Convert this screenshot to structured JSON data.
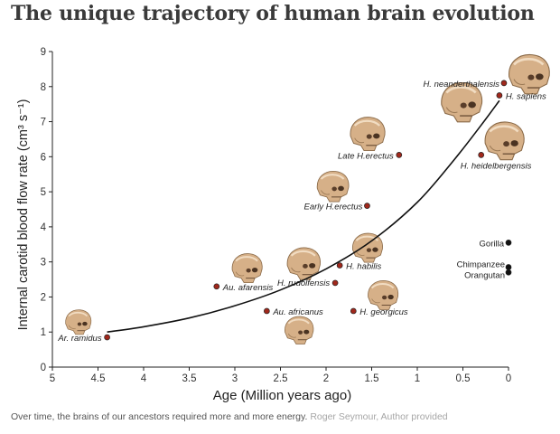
{
  "title": "The unique trajectory of human brain evolution",
  "caption": {
    "text": "Over time, the brains of our ancestors required more and more energy.",
    "credit": "Roger Seymour, Author provided"
  },
  "chart_data": {
    "type": "scatter",
    "xlabel": "Age  (Million years ago)",
    "ylabel": "Internal carotid blood flow rate  (cm³ s⁻¹)",
    "xlim": [
      5,
      0
    ],
    "ylim": [
      0,
      9
    ],
    "x_ticks": [
      "5",
      "4.5",
      "4",
      "3.5",
      "3",
      "2.5",
      "2",
      "1.5",
      "1",
      "0.5",
      "0"
    ],
    "y_ticks": [
      "0",
      "1",
      "2",
      "3",
      "4",
      "5",
      "6",
      "7",
      "8",
      "9"
    ],
    "grid": false,
    "legend": "none",
    "colors": {
      "hominin": "#a0281c",
      "ape": "#111111",
      "curve": "#111111",
      "skull": "#d9b48a"
    },
    "points": [
      {
        "label": "Ar. ramidus",
        "x": 4.4,
        "y": 0.85,
        "group": "hominin"
      },
      {
        "label": "Au. afarensis",
        "x": 3.2,
        "y": 2.3,
        "group": "hominin"
      },
      {
        "label": "Au. africanus",
        "x": 2.65,
        "y": 1.6,
        "group": "hominin"
      },
      {
        "label": "H. rudolfensis",
        "x": 1.9,
        "y": 2.4,
        "group": "hominin"
      },
      {
        "label": "H. habilis",
        "x": 1.85,
        "y": 2.9,
        "group": "hominin"
      },
      {
        "label": "H. georgicus",
        "x": 1.7,
        "y": 1.6,
        "group": "hominin"
      },
      {
        "label": "Early H.erectus",
        "x": 1.55,
        "y": 4.6,
        "group": "hominin"
      },
      {
        "label": "Late H.erectus",
        "x": 1.2,
        "y": 6.05,
        "group": "hominin"
      },
      {
        "label": "H. heidelbergensis",
        "x": 0.3,
        "y": 6.05,
        "group": "hominin"
      },
      {
        "label": "H. neanderthalensis",
        "x": 0.05,
        "y": 8.1,
        "group": "hominin"
      },
      {
        "label": "H. sapiens",
        "x": 0.1,
        "y": 7.75,
        "group": "hominin"
      },
      {
        "label": "Gorilla",
        "x": 0.0,
        "y": 3.55,
        "group": "ape"
      },
      {
        "label": "Chimpanzee",
        "x": 0.0,
        "y": 2.85,
        "group": "ape"
      },
      {
        "label": "Orangutan",
        "x": 0.0,
        "y": 2.7,
        "group": "ape"
      }
    ],
    "curve": [
      [
        4.4,
        1.0
      ],
      [
        4.0,
        1.15
      ],
      [
        3.5,
        1.4
      ],
      [
        3.0,
        1.75
      ],
      [
        2.5,
        2.2
      ],
      [
        2.0,
        2.8
      ],
      [
        1.5,
        3.6
      ],
      [
        1.0,
        4.7
      ],
      [
        0.6,
        5.9
      ],
      [
        0.3,
        6.9
      ],
      [
        0.1,
        7.6
      ]
    ],
    "skulls": [
      {
        "name": "skull-ar-ramidus",
        "x": 4.72,
        "y": 1.28,
        "size": 0.85
      },
      {
        "name": "skull-au-afarensis",
        "x": 2.87,
        "y": 2.82,
        "size": 1.0
      },
      {
        "name": "skull-au-africanus",
        "x": 2.3,
        "y": 1.05,
        "size": 0.95
      },
      {
        "name": "skull-h-rudolfensis",
        "x": 2.25,
        "y": 2.95,
        "size": 1.1
      },
      {
        "name": "skull-h-habilis",
        "x": 1.55,
        "y": 3.4,
        "size": 1.0
      },
      {
        "name": "skull-h-georgicus",
        "x": 1.38,
        "y": 2.05,
        "size": 1.0
      },
      {
        "name": "skull-early-h-erectus",
        "x": 1.93,
        "y": 5.15,
        "size": 1.05
      },
      {
        "name": "skull-late-h-erectus",
        "x": 1.55,
        "y": 6.65,
        "size": 1.15
      },
      {
        "name": "skull-h-heidelbergensis",
        "x": 0.05,
        "y": 6.45,
        "size": 1.3
      },
      {
        "name": "skull-h-sapiens",
        "x": 0.52,
        "y": 7.55,
        "size": 1.35
      },
      {
        "name": "skull-h-neanderthalensis",
        "x": -0.22,
        "y": 8.35,
        "size": 1.35
      }
    ]
  }
}
